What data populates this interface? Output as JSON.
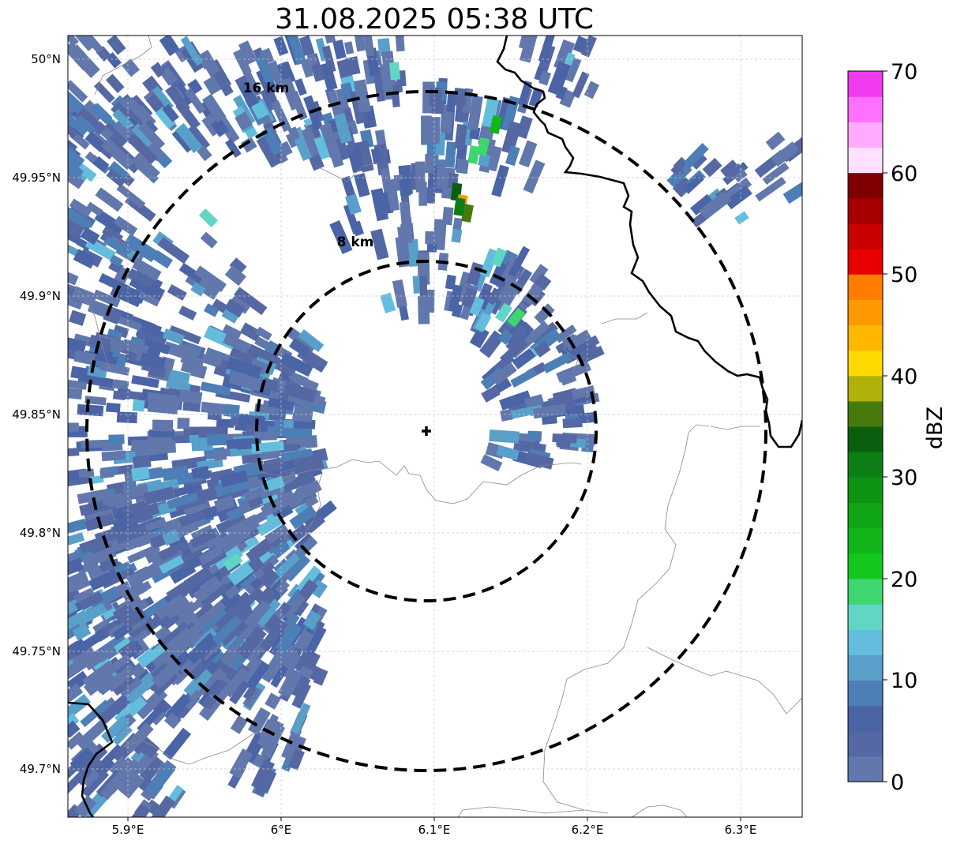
{
  "title": "31.08.2025 05:38 UTC",
  "map": {
    "x_ticks": [
      "5.9°E",
      "6°E",
      "6.1°E",
      "6.2°E",
      "6.3°E"
    ],
    "y_ticks": [
      "50°N",
      "49.95°N",
      "49.9°N",
      "49.85°N",
      "49.8°N",
      "49.75°N",
      "49.7°N"
    ],
    "lon_range": [
      5.86,
      6.34
    ],
    "lat_range": [
      49.68,
      50.01
    ],
    "radar_site": {
      "lon": 6.096,
      "lat": 49.843
    },
    "range_rings": [
      {
        "label": "8 km",
        "radius_km": 8
      },
      {
        "label": "16 km",
        "radius_km": 16
      }
    ]
  },
  "colorbar": {
    "label": "dBZ",
    "ticks": [
      "0",
      "10",
      "20",
      "30",
      "40",
      "50",
      "60",
      "70"
    ],
    "colors": [
      "#6278ac",
      "#5568a3",
      "#4a64a6",
      "#4d7eb5",
      "#58a0c9",
      "#63bedd",
      "#62d6c4",
      "#3ed66f",
      "#12c81c",
      "#12b61b",
      "#0fa514",
      "#0d9413",
      "#0c7f14",
      "#095f0e",
      "#477a0a",
      "#b0b10a",
      "#ffd800",
      "#ffb700",
      "#ff9900",
      "#ff7c00",
      "#e80000",
      "#c80000",
      "#a60000",
      "#7f0000",
      "#ffe0ff",
      "#ffaaff",
      "#ff70ff",
      "#f03af0"
    ]
  }
}
